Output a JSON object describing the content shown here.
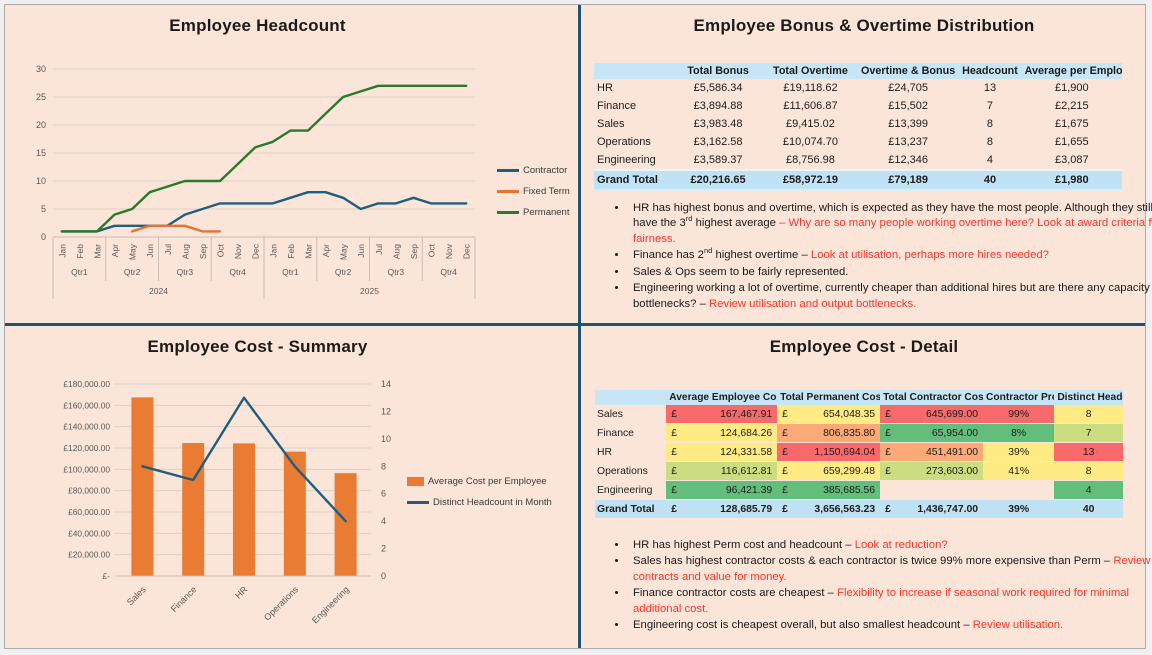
{
  "colors": {
    "blue": "#1F5E7D",
    "orange": "#E97132",
    "green": "#2B7A2B",
    "barOrange": "#E97B33",
    "teal_border": "#1C536E",
    "panel_bg": "#FBE5D8",
    "header_blue": "#C6E6F6",
    "total_blue": "#BFE2F4",
    "red_text": "#F4362C",
    "red": "#F8696B",
    "orangeFill": "#FBAA77",
    "yellow": "#FFEB84",
    "yellowGreen": "#CCDC81",
    "greenFill": "#63BE7B",
    "none": "transparent"
  },
  "chart_data": [
    {
      "type": "line",
      "title": "Employee Headcount",
      "x_months": [
        "Jan",
        "Feb",
        "Mar",
        "Apr",
        "May",
        "Jun",
        "Jul",
        "Aug",
        "Sep",
        "Oct",
        "Nov",
        "Dec"
      ],
      "x_quarters": [
        "Qtr1",
        "Qtr2",
        "Qtr3",
        "Qtr4"
      ],
      "x_years": [
        "2024",
        "2025"
      ],
      "ylim": [
        0,
        30
      ],
      "ytick_step": 5,
      "grid": true,
      "legend_position": "right",
      "series": [
        {
          "name": "Contractor",
          "color_key": "blue",
          "values": [
            1,
            1,
            1,
            2,
            2,
            2,
            2,
            4,
            5,
            6,
            6,
            6,
            6,
            7,
            8,
            8,
            7,
            5,
            6,
            6,
            7,
            6,
            6,
            6
          ]
        },
        {
          "name": "Fixed Term",
          "color_key": "orange",
          "values": [
            null,
            null,
            null,
            null,
            1,
            2,
            2,
            2,
            1,
            1,
            null,
            null,
            null,
            null,
            null,
            null,
            null,
            null,
            null,
            null,
            null,
            null,
            null,
            null
          ]
        },
        {
          "name": "Permanent",
          "color_key": "green",
          "values": [
            1,
            1,
            1,
            4,
            5,
            8,
            9,
            10,
            10,
            10,
            13,
            16,
            17,
            19,
            19,
            22,
            25,
            26,
            27,
            27,
            27,
            27,
            27,
            27
          ]
        }
      ]
    },
    {
      "type": "bar-line-combo",
      "title": "Employee Cost - Summary",
      "categories": [
        "Sales",
        "Finance",
        "HR",
        "Operations",
        "Engineering"
      ],
      "series": [
        {
          "name": "Average Cost per Employee",
          "kind": "bar",
          "axis": "left",
          "color_key": "barOrange",
          "values": [
            167467.91,
            124684.26,
            124331.58,
            116612.81,
            96421.39
          ]
        },
        {
          "name": "Distinct Headcount in Month",
          "kind": "line",
          "axis": "right",
          "color_key": "blue",
          "values": [
            8,
            7,
            13,
            8,
            4
          ]
        }
      ],
      "left_axis": {
        "max": 180000,
        "step": 20000,
        "labels": [
          "£180,000.00",
          "£160,000.00",
          "£140,000.00",
          "£120,000.00",
          "£100,000.00",
          "£80,000.00",
          "£60,000.00",
          "£40,000.00",
          "£20,000.00",
          "£-"
        ]
      },
      "right_axis": {
        "min": 0,
        "max": 14,
        "step": 2
      },
      "legend_position": "right",
      "grid": true
    },
    {
      "type": "table",
      "title": "Employee Bonus & Overtime Distribution",
      "headers": [
        "",
        "Total Bonus",
        "Total Overtime",
        "Overtime & Bonus",
        "Headcount",
        "Average per Employee"
      ],
      "col_widths": [
        "15%",
        "17%",
        "18%",
        "19%",
        "12%",
        "19%"
      ],
      "rows": [
        [
          "HR",
          "£5,586.34",
          "£19,118.62",
          "£24,705",
          "13",
          "£1,900"
        ],
        [
          "Finance",
          "£3,894.88",
          "£11,606.87",
          "£15,502",
          "7",
          "£2,215"
        ],
        [
          "Sales",
          "£3,983.48",
          "£9,415.02",
          "£13,399",
          "8",
          "£1,675"
        ],
        [
          "Operations",
          "£3,162.58",
          "£10,074.70",
          "£13,237",
          "8",
          "£1,655"
        ],
        [
          "Engineering",
          "£3,589.37",
          "£8,756.98",
          "£12,346",
          "4",
          "£3,087"
        ]
      ],
      "total_row": [
        "Grand Total",
        "£20,216.65",
        "£58,972.19",
        "£79,189",
        "40",
        "£1,980"
      ],
      "insights": [
        [
          {
            "t": "HR has highest bonus and overtime, which is expected as they have the most people. Although they still have the 3"
          },
          {
            "t": "rd",
            "sup": true
          },
          {
            "t": " highest average "
          },
          {
            "t": "– Why are so many people working overtime here? Look at award criteria for fairness.",
            "red": true
          }
        ],
        [
          {
            "t": "Finance has 2"
          },
          {
            "t": "nd",
            "sup": true
          },
          {
            "t": " highest overtime – "
          },
          {
            "t": "Look at utilisation, perhaps more hires needed?",
            "red": true
          }
        ],
        [
          {
            "t": "Sales & Ops seem to be fairly represented."
          }
        ],
        [
          {
            "t": "Engineering working a lot of overtime, currently cheaper than additional hires but are there any capacity bottlenecks? – "
          },
          {
            "t": "Review utilisation and output bottlenecks.",
            "red": true
          }
        ]
      ]
    },
    {
      "type": "table",
      "title": "Employee Cost - Detail",
      "headers": [
        "",
        "Average Employee Cost",
        "Total Permanent Cost",
        "Total Contractor Cost",
        "Contractor Premium",
        "Distinct Headcount"
      ],
      "col_widths": [
        "13.5%",
        "21%",
        "19.5%",
        "19.5%",
        "13.5%",
        "13%"
      ],
      "rows": [
        {
          "label": "Sales",
          "cells": [
            {
              "cur": "£",
              "amt": "167,467.91",
              "bg": "red"
            },
            {
              "cur": "£",
              "amt": "654,048.35",
              "bg": "yellow"
            },
            {
              "cur": "£",
              "amt": "645,699.00",
              "bg": "red"
            },
            {
              "t": "99%",
              "bg": "red"
            },
            {
              "t": "8",
              "bg": "yellow"
            }
          ]
        },
        {
          "label": "Finance",
          "cells": [
            {
              "cur": "£",
              "amt": "124,684.26",
              "bg": "yellow"
            },
            {
              "cur": "£",
              "amt": "806,835.80",
              "bg": "orangeFill"
            },
            {
              "cur": "£",
              "amt": "65,954.00",
              "bg": "greenFill"
            },
            {
              "t": "8%",
              "bg": "greenFill"
            },
            {
              "t": "7",
              "bg": "yellowGreen"
            }
          ]
        },
        {
          "label": "HR",
          "cells": [
            {
              "cur": "£",
              "amt": "124,331.58",
              "bg": "yellow"
            },
            {
              "cur": "£",
              "amt": "1,150,694.04",
              "bg": "red"
            },
            {
              "cur": "£",
              "amt": "451,491.00",
              "bg": "orangeFill"
            },
            {
              "t": "39%",
              "bg": "yellow"
            },
            {
              "t": "13",
              "bg": "red"
            }
          ]
        },
        {
          "label": "Operations",
          "cells": [
            {
              "cur": "£",
              "amt": "116,612.81",
              "bg": "yellowGreen"
            },
            {
              "cur": "£",
              "amt": "659,299.48",
              "bg": "yellow"
            },
            {
              "cur": "£",
              "amt": "273,603.00",
              "bg": "yellowGreen"
            },
            {
              "t": "41%",
              "bg": "yellow"
            },
            {
              "t": "8",
              "bg": "yellow"
            }
          ]
        },
        {
          "label": "Engineering",
          "cells": [
            {
              "cur": "£",
              "amt": "96,421.39",
              "bg": "greenFill"
            },
            {
              "cur": "£",
              "amt": "385,685.56",
              "bg": "greenFill"
            },
            {
              "t": "",
              "bg": "none"
            },
            {
              "t": "",
              "bg": "none"
            },
            {
              "t": "4",
              "bg": "greenFill"
            }
          ]
        }
      ],
      "total_row": {
        "label": "Grand Total",
        "cells": [
          {
            "cur": "£",
            "amt": "128,685.79"
          },
          {
            "cur": "£",
            "amt": "3,656,563.23"
          },
          {
            "cur": "£",
            "amt": "1,436,747.00"
          },
          {
            "t": "39%"
          },
          {
            "t": "40"
          }
        ]
      },
      "insights": [
        [
          {
            "t": "HR has highest Perm cost and headcount – "
          },
          {
            "t": "Look at reduction?",
            "red": true
          }
        ],
        [
          {
            "t": "Sales has highest contractor costs & each contractor is twice 99% more expensive than Perm – "
          },
          {
            "t": "Review contracts and value for money.",
            "red": true
          }
        ],
        [
          {
            "t": "Finance contractor costs are cheapest – "
          },
          {
            "t": "Flexibility to increase if seasonal work required for minimal additional cost.",
            "red": true
          }
        ],
        [
          {
            "t": "Engineering cost is cheapest overall, but also smallest headcount – "
          },
          {
            "t": "Review utilisation.",
            "red": true
          }
        ]
      ]
    }
  ]
}
